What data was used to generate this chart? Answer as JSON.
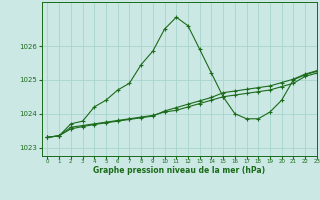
{
  "title": "Graphe pression niveau de la mer (hPa)",
  "bg_color": "#cce8e4",
  "grid_color": "#a8d4ce",
  "line_color": "#1a6b1a",
  "marker_color": "#1a6b1a",
  "xlim": [
    -0.5,
    23
  ],
  "ylim": [
    1022.75,
    1027.3
  ],
  "yticks": [
    1023,
    1024,
    1025,
    1026
  ],
  "xticks": [
    0,
    1,
    2,
    3,
    4,
    5,
    6,
    7,
    8,
    9,
    10,
    11,
    12,
    13,
    14,
    15,
    16,
    17,
    18,
    19,
    20,
    21,
    22,
    23
  ],
  "series": [
    {
      "x": [
        0,
        1,
        2,
        3,
        4,
        5,
        6,
        7,
        8,
        9,
        10,
        11,
        12,
        13,
        14,
        15,
        16,
        17,
        18,
        19,
        20,
        21,
        22,
        23
      ],
      "y": [
        1023.3,
        1023.35,
        1023.6,
        1023.65,
        1023.7,
        1023.75,
        1023.8,
        1023.85,
        1023.9,
        1023.95,
        1024.05,
        1024.1,
        1024.2,
        1024.3,
        1024.4,
        1024.5,
        1024.55,
        1024.6,
        1024.65,
        1024.7,
        1024.8,
        1024.9,
        1025.1,
        1025.2
      ]
    },
    {
      "x": [
        0,
        1,
        2,
        3,
        4,
        5,
        6,
        7,
        8,
        9,
        10,
        11,
        12,
        13,
        14,
        15,
        16,
        17,
        18,
        19,
        20,
        21,
        22,
        23
      ],
      "y": [
        1023.3,
        1023.35,
        1023.55,
        1023.62,
        1023.68,
        1023.73,
        1023.78,
        1023.83,
        1023.88,
        1023.93,
        1024.08,
        1024.18,
        1024.28,
        1024.38,
        1024.48,
        1024.62,
        1024.67,
        1024.72,
        1024.77,
        1024.82,
        1024.92,
        1025.02,
        1025.17,
        1025.27
      ]
    },
    {
      "x": [
        0,
        1,
        2,
        3,
        4,
        5,
        6,
        7,
        8,
        9,
        10,
        11,
        12,
        13,
        14,
        15,
        16,
        17,
        18,
        19,
        20,
        21,
        22,
        23
      ],
      "y": [
        1023.3,
        1023.35,
        1023.7,
        1023.78,
        1024.2,
        1024.4,
        1024.7,
        1024.9,
        1025.45,
        1025.85,
        1026.5,
        1026.85,
        1026.6,
        1025.9,
        1025.2,
        1024.5,
        1024.0,
        1023.85,
        1023.85,
        1024.05,
        1024.4,
        1025.0,
        1025.15,
        1025.25
      ]
    }
  ]
}
